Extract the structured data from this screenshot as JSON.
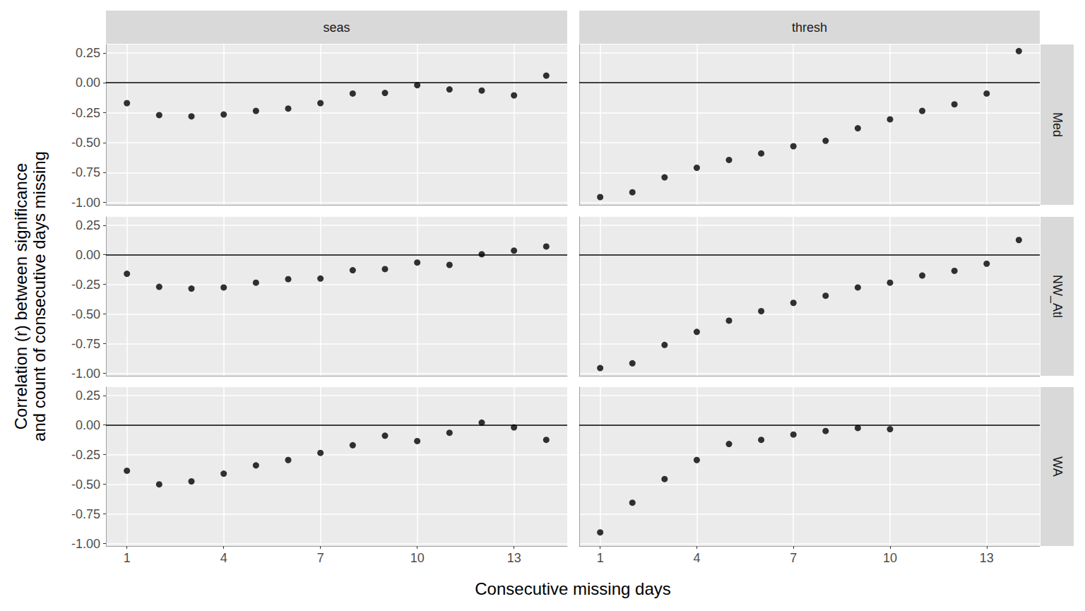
{
  "chart_data": {
    "type": "scatter",
    "x_label": "Consecutive missing days",
    "y_label": "Correlation (r) between significance\nand count of consecutive days missing",
    "columns": [
      "seas",
      "thresh"
    ],
    "rows": [
      "Med",
      "NW_Atl",
      "WA"
    ],
    "color": "#000000",
    "grid": true,
    "reference_line": 0,
    "xlim": [
      0.35,
      14.65
    ],
    "xticks": [
      1,
      4,
      7,
      10,
      13
    ],
    "ylim": [
      -1.02,
      0.32
    ],
    "yticks": [
      {
        "value": -1,
        "label": "-1.00"
      },
      {
        "value": -0.75,
        "label": "-0.75"
      },
      {
        "value": -0.5,
        "label": "-0.50"
      },
      {
        "value": -0.25,
        "label": "-0.25"
      },
      {
        "value": 0,
        "label": "0.00"
      },
      {
        "value": 0.25,
        "label": "0.25"
      }
    ],
    "panels": [
      {
        "column": "seas",
        "row": "Med",
        "x": [
          1,
          2,
          3,
          4,
          5,
          6,
          7,
          8,
          9,
          10,
          11,
          12,
          13,
          14
        ],
        "values": [
          -0.17,
          -0.27,
          -0.28,
          -0.265,
          -0.235,
          -0.215,
          -0.17,
          -0.09,
          -0.085,
          -0.02,
          -0.055,
          -0.065,
          -0.105,
          0.06
        ]
      },
      {
        "column": "thresh",
        "row": "Med",
        "x": [
          1,
          2,
          3,
          4,
          5,
          6,
          7,
          8,
          9,
          10,
          11,
          12,
          13,
          14
        ],
        "values": [
          -0.955,
          -0.915,
          -0.79,
          -0.71,
          -0.645,
          -0.59,
          -0.53,
          -0.485,
          -0.38,
          -0.305,
          -0.235,
          -0.18,
          -0.09,
          0.265
        ]
      },
      {
        "column": "seas",
        "row": "NW_Atl",
        "x": [
          1,
          2,
          3,
          4,
          5,
          6,
          7,
          8,
          9,
          10,
          11,
          12,
          13,
          14
        ],
        "values": [
          -0.16,
          -0.27,
          -0.285,
          -0.275,
          -0.235,
          -0.205,
          -0.2,
          -0.13,
          -0.12,
          -0.065,
          -0.085,
          0.005,
          0.035,
          0.07
        ]
      },
      {
        "column": "thresh",
        "row": "NW_Atl",
        "x": [
          1,
          2,
          3,
          4,
          5,
          6,
          7,
          8,
          9,
          10,
          11,
          12,
          13,
          14
        ],
        "values": [
          -0.955,
          -0.915,
          -0.76,
          -0.65,
          -0.555,
          -0.475,
          -0.405,
          -0.345,
          -0.275,
          -0.235,
          -0.175,
          -0.135,
          -0.075,
          0.125
        ]
      },
      {
        "column": "seas",
        "row": "WA",
        "x": [
          1,
          2,
          3,
          4,
          5,
          6,
          7,
          8,
          9,
          10,
          11,
          12,
          13,
          14
        ],
        "values": [
          -0.385,
          -0.5,
          -0.475,
          -0.41,
          -0.34,
          -0.295,
          -0.235,
          -0.17,
          -0.09,
          -0.135,
          -0.065,
          0.02,
          -0.02,
          -0.125
        ]
      },
      {
        "column": "thresh",
        "row": "WA",
        "x": [
          1,
          2,
          3,
          4,
          5,
          6,
          7,
          8,
          9,
          10
        ],
        "values": [
          -0.905,
          -0.655,
          -0.455,
          -0.295,
          -0.16,
          -0.125,
          -0.08,
          -0.05,
          -0.025,
          -0.035
        ]
      }
    ]
  }
}
